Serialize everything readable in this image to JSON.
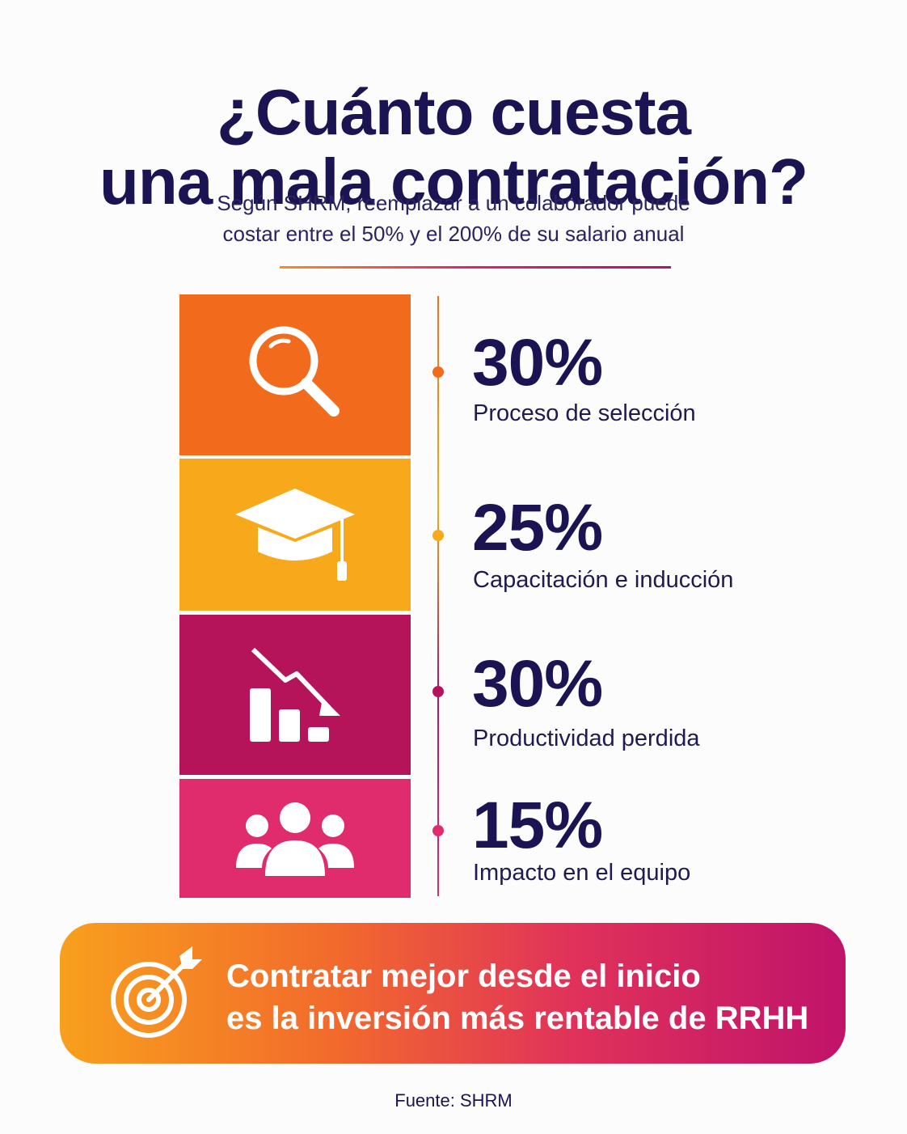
{
  "header": {
    "title_line1": "¿Cuánto cuesta",
    "title_line2": "una mala contratación?",
    "subtitle_line1": "Según SHRM, reemplazar a un colaborador puede",
    "subtitle_line2": "costar entre el 50% y el 200% de su salario anual"
  },
  "items": [
    {
      "percent": "30%",
      "label": "Proceso de selección",
      "icon": "magnifier-icon",
      "color": "#f26b1d"
    },
    {
      "percent": "25%",
      "label": "Capacitación e inducción",
      "icon": "graduation-cap-icon",
      "color": "#f8a91b"
    },
    {
      "percent": "30%",
      "label": "Productividad perdida",
      "icon": "declining-chart-icon",
      "color": "#b5145b"
    },
    {
      "percent": "15%",
      "label": "Impacto en el equipo",
      "icon": "team-icon",
      "color": "#e02b6d"
    }
  ],
  "banner": {
    "line1": "Contratar mejor desde el inicio",
    "line2": "es la inversión más rentable de RRHH",
    "icon": "target-arrow-icon"
  },
  "footer": {
    "source": "Fuente: SHRM"
  }
}
